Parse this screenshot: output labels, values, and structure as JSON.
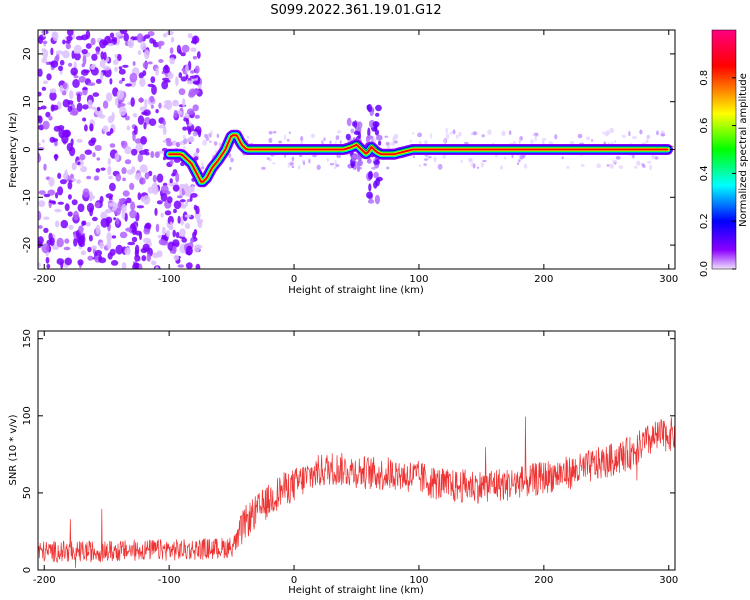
{
  "title": "S099.2022.361.19.01.G12",
  "chart_data": [
    {
      "type": "heatmap",
      "xlabel": "Height of straight line (km)",
      "ylabel": "Frequency (Hz)",
      "xlim": [
        -205,
        305
      ],
      "ylim": [
        -25,
        25
      ],
      "xticks": [
        -200,
        -100,
        0,
        100,
        200,
        300
      ],
      "yticks": [
        -20,
        -10,
        0,
        10,
        20
      ],
      "colorbar": {
        "label": "Normalized spectral amplitude",
        "range": [
          0,
          1
        ],
        "ticks": [
          0.0,
          0.2,
          0.4,
          0.6,
          0.8
        ],
        "colors": [
          "#f0e0ff",
          "#8a00ff",
          "#0000ff",
          "#00ffff",
          "#00ff00",
          "#ffff00",
          "#ff0000",
          "#ff0080"
        ]
      },
      "ridge": {
        "x": [
          -100,
          -90,
          -82,
          -74,
          -70,
          -66,
          -60,
          -55,
          -50,
          -46,
          -42,
          -38,
          0,
          40,
          46,
          50,
          54,
          58,
          62,
          66,
          70,
          80,
          95,
          120,
          300
        ],
        "y": [
          -1,
          -1,
          -3,
          -7,
          -6,
          -4,
          -2,
          0,
          3,
          3,
          1,
          0,
          0,
          0,
          0.5,
          1,
          0,
          -1,
          0.5,
          -0.5,
          -1,
          -1,
          0,
          0,
          0
        ]
      }
    },
    {
      "type": "line",
      "xlabel": "Height of straight line (km)",
      "ylabel": "SNR (10 * v/v)",
      "xlim": [
        -205,
        305
      ],
      "ylim": [
        0,
        155
      ],
      "xticks": [
        -200,
        -100,
        0,
        100,
        200,
        300
      ],
      "yticks": [
        0,
        50,
        100,
        150
      ],
      "series": [
        {
          "color": "#ee3333",
          "x": [
            -205,
            -180,
            -150,
            -120,
            -90,
            -60,
            -50,
            -45,
            -40,
            -30,
            -20,
            -10,
            0,
            10,
            20,
            30,
            40,
            50,
            60,
            70,
            80,
            90,
            100,
            110,
            120,
            130,
            140,
            150,
            160,
            170,
            180,
            190,
            200,
            210,
            220,
            230,
            240,
            250,
            260,
            270,
            280,
            290,
            300,
            305
          ],
          "y": [
            12,
            12,
            12,
            13,
            13,
            14,
            15,
            20,
            30,
            38,
            45,
            52,
            55,
            60,
            64,
            66,
            65,
            64,
            63,
            62,
            63,
            61,
            60,
            57,
            55,
            54,
            55,
            54,
            56,
            55,
            57,
            58,
            60,
            62,
            63,
            65,
            68,
            70,
            73,
            76,
            82,
            86,
            88,
            88
          ]
        }
      ]
    }
  ]
}
